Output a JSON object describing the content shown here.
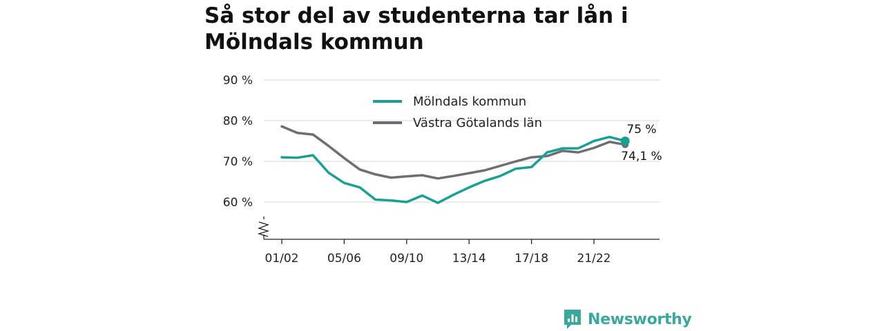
{
  "title": "Så stor del av studenterna tar lån i Mölndals kommun",
  "brand": {
    "name": "Newsworthy",
    "icon": "newsworthy-logo-icon"
  },
  "colors": {
    "primary": "#17a193",
    "secondary": "#6d6d73",
    "brand": "#3aa99d"
  },
  "chart_data": {
    "type": "line",
    "x": [
      "01/02",
      "02/03",
      "03/04",
      "04/05",
      "05/06",
      "06/07",
      "07/08",
      "08/09",
      "09/10",
      "10/11",
      "11/12",
      "12/13",
      "13/14",
      "14/15",
      "15/16",
      "16/17",
      "17/18",
      "18/19",
      "19/20",
      "20/21",
      "21/22",
      "22/23",
      "23/24"
    ],
    "x_tick_labels": [
      "01/02",
      "05/06",
      "09/10",
      "13/14",
      "17/18",
      "21/22"
    ],
    "y_tick_labels": [
      "90 %",
      "80 %",
      "70 %",
      "60 %"
    ],
    "y_ticks": [
      90,
      80,
      70,
      60
    ],
    "ylim": [
      51,
      90
    ],
    "y_axis_break": true,
    "grid": true,
    "legend_position": "top-center",
    "series": [
      {
        "name": "Mölndals kommun",
        "color": "#17a193",
        "values": [
          71.0,
          70.9,
          71.5,
          67.2,
          64.7,
          63.6,
          60.6,
          60.4,
          60.0,
          61.6,
          59.8,
          61.8,
          63.6,
          65.2,
          66.4,
          68.2,
          68.6,
          72.2,
          73.2,
          73.2,
          75.0,
          76.0,
          75.0
        ],
        "end_label": "75 %"
      },
      {
        "name": "Västra Götalands län",
        "color": "#6d6d73",
        "values": [
          78.6,
          77.0,
          76.6,
          73.8,
          70.8,
          68.0,
          66.8,
          66.0,
          66.3,
          66.6,
          65.8,
          66.4,
          67.1,
          67.8,
          68.9,
          70.0,
          71.0,
          71.3,
          72.6,
          72.2,
          73.3,
          74.8,
          74.1
        ],
        "end_label": "74,1 %"
      }
    ]
  }
}
